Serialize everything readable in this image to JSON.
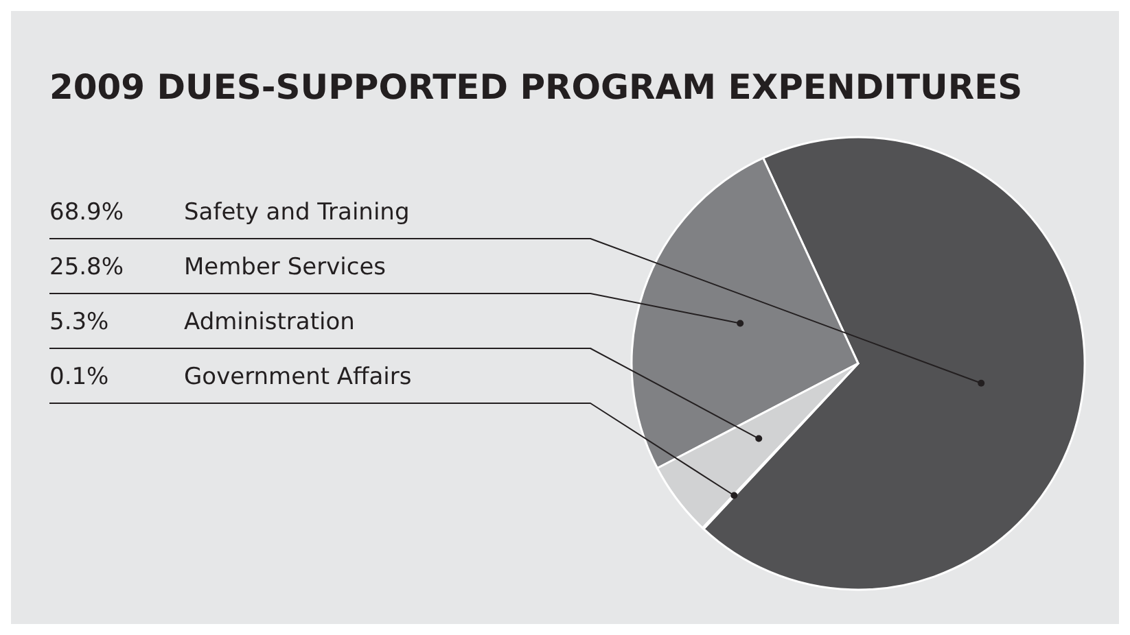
{
  "chart_data": {
    "type": "pie",
    "title": "2009 DUES-SUPPORTED PROGRAM EXPENDITURES",
    "categories": [
      "Safety and Training",
      "Member Services",
      "Administration",
      "Government Affairs"
    ],
    "values": [
      68.9,
      25.8,
      5.3,
      0.1
    ],
    "value_labels": [
      "68.9%",
      "25.8%",
      "5.3%",
      "0.1%"
    ],
    "colors": [
      "#525254",
      "#808184",
      "#d1d2d3",
      "#525254"
    ]
  }
}
